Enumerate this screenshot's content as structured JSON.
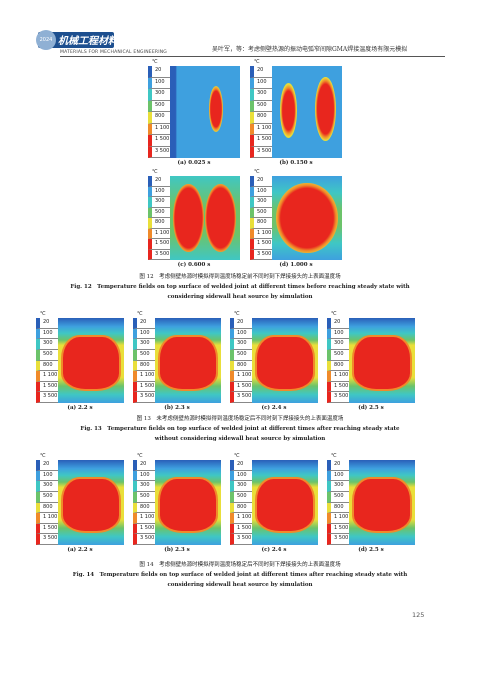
{
  "header": {
    "badge": "2024",
    "journal_cn": "机械工程材料",
    "journal_en": "MATERIALS FOR MECHANICAL ENGINEERING",
    "running_title": "吴叶军，等：考虑侧壁热源的振动电弧窄间隙GMA焊接温度场有限元模拟"
  },
  "unit": "℃",
  "legend_ticks": [
    "20",
    "100",
    "300",
    "500",
    "800",
    "1 100",
    "1 500",
    "3 500"
  ],
  "fig12": {
    "panels": [
      "(a) 0.025 s",
      "(b) 0.150 s",
      "(c) 0.600 s",
      "(d) 1.000 s"
    ],
    "caption_cn": "图 12　考虑侧壁热源时模拟得到温度场稳定前不同时刻下焊接接头的上表面温度场",
    "caption_en": "Fig. 12　Temperature fields on top surface of welded joint at different times before reaching steady state with considering sidewall heat source by simulation"
  },
  "fig13": {
    "panels": [
      "(a) 2.2 s",
      "(b) 2.3 s",
      "(c) 2.4 s",
      "(d) 2.5 s"
    ],
    "caption_cn": "图 13　未考虑侧壁热源时模拟得到温度场稳定后不同时刻下焊接接头的上表面温度场",
    "caption_en": "Fig. 13　Temperature fields on top surface of welded joint at different times after reaching steady state without considering sidewall heat source by simulation"
  },
  "fig14": {
    "panels": [
      "(a) 2.2 s",
      "(b) 2.3 s",
      "(c) 2.4 s",
      "(d) 2.5 s"
    ],
    "caption_cn": "图 14　考虑侧壁热源时模拟得到温度场稳定后不同时刻下焊接接头的上表面温度场",
    "caption_en": "Fig. 14　Temperature fields on top surface of welded joint at different times after reaching steady state with considering sidewall heat source by simulation"
  },
  "page_number": "125",
  "colors": {
    "blue": "#2a5fb8",
    "lightblue": "#3ea0df",
    "cyan": "#3fc7c4",
    "green": "#6cc36a",
    "yellow": "#e9df3a",
    "orange": "#f08a2a",
    "red": "#e8261e"
  }
}
